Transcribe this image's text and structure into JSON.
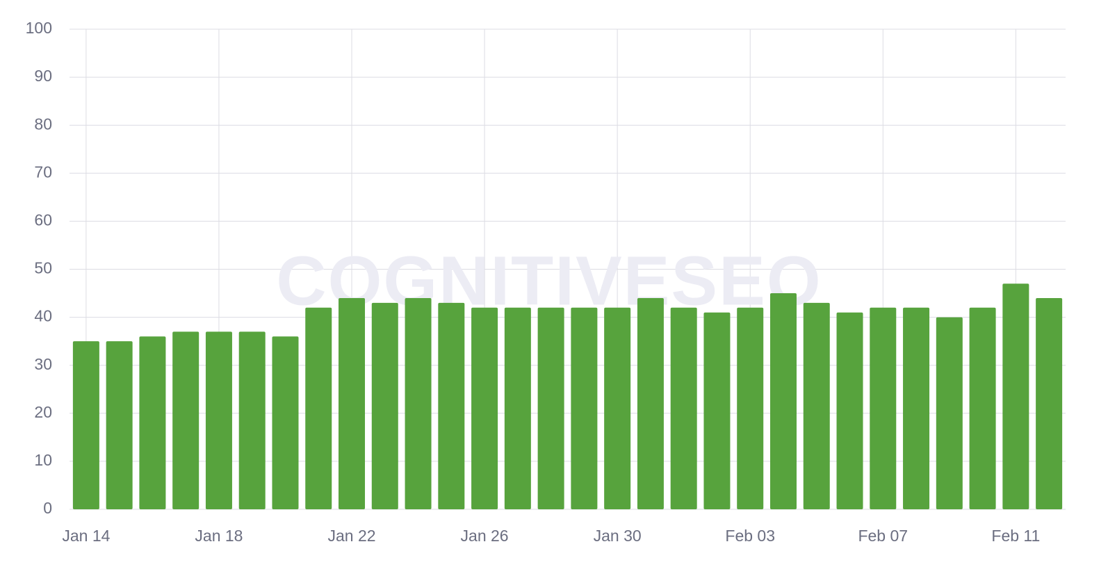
{
  "chart_data": {
    "type": "bar",
    "watermark": "COGNITIVESEO",
    "categories": [
      "Jan 14",
      null,
      null,
      null,
      "Jan 18",
      null,
      null,
      null,
      "Jan 22",
      null,
      null,
      null,
      "Jan 26",
      null,
      null,
      null,
      "Jan 30",
      null,
      null,
      null,
      "Feb 03",
      null,
      null,
      null,
      "Feb 07",
      null,
      null,
      null,
      "Feb 11",
      null
    ],
    "values": [
      35,
      35,
      36,
      37,
      37,
      37,
      36,
      42,
      44,
      43,
      44,
      43,
      42,
      42,
      42,
      42,
      42,
      44,
      42,
      41,
      42,
      45,
      43,
      41,
      42,
      42,
      40,
      42,
      47,
      44
    ],
    "color": "#57a33d",
    "ylim": [
      0,
      100
    ],
    "yticks": [
      0,
      10,
      20,
      30,
      40,
      50,
      60,
      70,
      80,
      90,
      100
    ],
    "grid": true
  }
}
